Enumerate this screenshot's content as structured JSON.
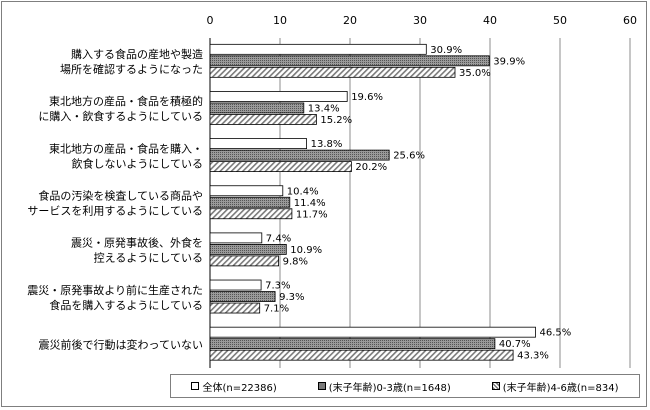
{
  "chart_data": {
    "type": "bar",
    "orientation": "horizontal",
    "xlim": [
      0,
      60
    ],
    "ticks": [
      0,
      10,
      20,
      30,
      40,
      50,
      60
    ],
    "grid": true,
    "categories": [
      [
        "購入する食品の産地や製造",
        "場所を確認するようになった"
      ],
      [
        "東北地方の産品・食品を積極的",
        "に購入・飲食するようにしている"
      ],
      [
        "東北地方の産品・食品を購入・",
        "飲食しないようにしている"
      ],
      [
        "食品の汚染を検査している商品や",
        "サービスを利用するようにしている"
      ],
      [
        "震災・原発事故後、外食を",
        "控えるようにしている"
      ],
      [
        "震災・原発事故より前に生産された",
        "食品を購入するようにしている"
      ],
      [
        "震災前後で行動は変わっていない"
      ]
    ],
    "series": [
      {
        "name": "全体(n=22386)",
        "values": [
          30.9,
          19.6,
          13.8,
          10.4,
          7.4,
          7.3,
          46.5
        ]
      },
      {
        "name": "(末子年齢)0-3歳(n=1648)",
        "values": [
          39.9,
          13.4,
          25.6,
          11.4,
          10.9,
          9.3,
          40.7
        ]
      },
      {
        "name": "(末子年齢)4-6歳(n=834)",
        "values": [
          35.0,
          15.2,
          20.2,
          11.7,
          9.8,
          7.1,
          43.3
        ]
      }
    ],
    "value_suffix": "%",
    "legend_position": "bottom"
  },
  "colors": {
    "border": "#000000",
    "grid": "#8c8c8c",
    "frame": "#7f7f7f",
    "series_fill": [
      "#ffffff",
      "#7a7a7a",
      "#ffffff"
    ],
    "hatch": "#7a7a7a"
  }
}
